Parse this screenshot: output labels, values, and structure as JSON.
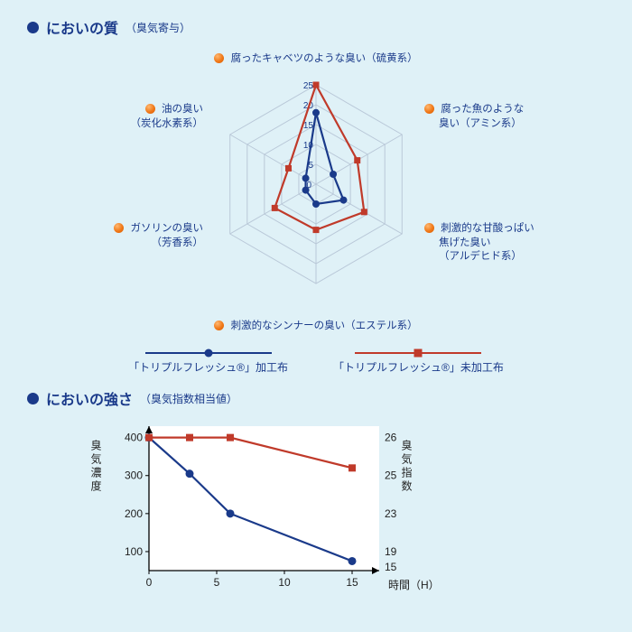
{
  "page": {
    "background": "#dff1f7"
  },
  "radar": {
    "heading_title": "においの質",
    "heading_sub": "（臭気寄与）",
    "axes": [
      {
        "label_l1": "腐ったキャベツのような臭い（硫黄系）",
        "label_l2": ""
      },
      {
        "label_l1": "腐った魚のような",
        "label_l2": "臭い（アミン系）"
      },
      {
        "label_l1": "刺激的な甘酸っぱい",
        "label_l2": "焦げた臭い",
        "label_l3": "（アルデヒド系）"
      },
      {
        "label_l1": "刺激的なシンナーの臭い（エステル系）",
        "label_l2": ""
      },
      {
        "label_l1": "ガソリンの臭い",
        "label_l2": "（芳香系）"
      },
      {
        "label_l1": "油の臭い",
        "label_l2": "（炭化水素系）"
      }
    ],
    "rings": [
      5,
      10,
      15,
      20,
      25
    ],
    "ring_color": "#b9c8d8",
    "tick_font": 10,
    "series": [
      {
        "name": "blue",
        "color": "#1a3a8a",
        "width": 2.2,
        "marker": "circle",
        "marker_r": 4,
        "values": [
          18,
          5,
          8,
          5,
          3,
          3
        ],
        "legend": "「トリプルフレッシュ®」加工布"
      },
      {
        "name": "red",
        "color": "#c03a2a",
        "width": 2.2,
        "marker": "square",
        "marker_s": 7,
        "values": [
          25,
          12,
          14,
          11.5,
          12,
          8
        ],
        "legend": "「トリプルフレッシュ®」未加工布"
      }
    ]
  },
  "line": {
    "heading_title": "においの強さ",
    "heading_sub": "（臭気指数相当値）",
    "x_label": "時間（H）",
    "y_label": "臭気濃度",
    "y2_label": "臭気指数",
    "x_ticks": [
      0,
      5,
      10,
      15
    ],
    "y_ticks": [
      100,
      200,
      300,
      400
    ],
    "y2_ticks": [
      15,
      19,
      23,
      25,
      26
    ],
    "xlim": [
      0,
      17
    ],
    "ylim": [
      50,
      430
    ],
    "axis_color": "#000000",
    "grid": false,
    "plot_bg": "#ffffff",
    "series": [
      {
        "name": "blue",
        "color": "#1a3a8a",
        "width": 2.2,
        "marker": "circle",
        "marker_r": 4.5,
        "points": [
          [
            0,
            400
          ],
          [
            3,
            305
          ],
          [
            6,
            200
          ],
          [
            15,
            75
          ]
        ]
      },
      {
        "name": "red",
        "color": "#c03a2a",
        "width": 2.2,
        "marker": "square",
        "marker_s": 8,
        "points": [
          [
            0,
            400
          ],
          [
            3,
            400
          ],
          [
            6,
            400
          ],
          [
            15,
            320
          ]
        ]
      }
    ]
  }
}
